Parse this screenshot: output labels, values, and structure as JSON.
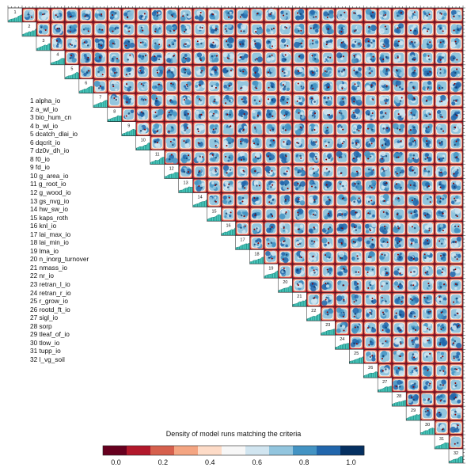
{
  "chart_data": {
    "type": "heatmap",
    "variables": [
      "alpha_io",
      "a_wl_io",
      "bio_hum_cn",
      "b_wl_io",
      "dcatch_dlai_io",
      "dqcrit_io",
      "dz0v_dh_io",
      "f0_io",
      "fd_io",
      "g_area_io",
      "g_root_io",
      "g_wood_io",
      "gs_nvg_io",
      "hw_sw_io",
      "kaps_roth",
      "knl_io",
      "lai_max_io",
      "lai_min_io",
      "lma_io",
      "n_inorg_turnover",
      "nmass_io",
      "nr_io",
      "retran_l_io",
      "retran_r_io",
      "r_grow_io",
      "rootd_ft_io",
      "sigl_io",
      "sorp",
      "tleaf_of_io",
      "tlow_io",
      "tupp_io",
      "l_vg_soil"
    ],
    "colorbar": {
      "title": "Density of model runs matching the criteria",
      "ticks": [
        "0.0",
        "0.2",
        "0.4",
        "0.6",
        "0.8",
        "1.0"
      ],
      "range": [
        0,
        1
      ],
      "colors": [
        "#67001f",
        "#b2182b",
        "#d6604d",
        "#f4a582",
        "#fddbc7",
        "#f7f7f7",
        "#d1e5f0",
        "#92c5de",
        "#4393c3",
        "#2166ac",
        "#053061"
      ]
    },
    "grid": false,
    "legend_placement": "left"
  },
  "colors": {
    "histogram_fill": "#20b2aa",
    "point_color": "#8b0000"
  }
}
